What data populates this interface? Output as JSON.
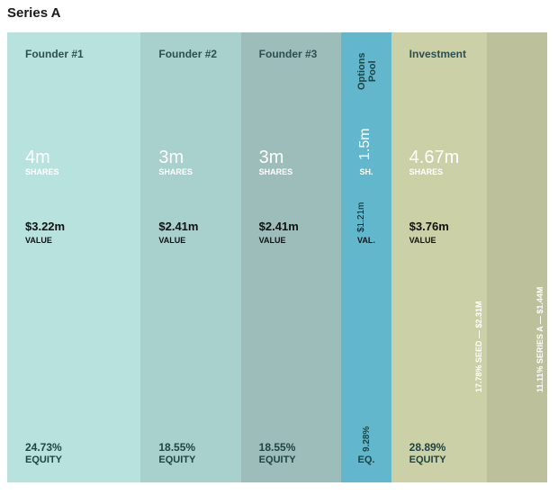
{
  "page": {
    "title": "Series A"
  },
  "chart_data": {
    "type": "marimekko",
    "title": "Series A",
    "columns": [
      {
        "name": "Founder #1",
        "shares": "4m",
        "shares_label": "SHARES",
        "value": "$3.22m",
        "value_label": "VALUE",
        "equity": "24.73%",
        "equity_label": "EQUITY",
        "equity_pct": 24.73,
        "color": "#b8e2de"
      },
      {
        "name": "Founder #2",
        "shares": "3m",
        "shares_label": "SHARES",
        "value": "$2.41m",
        "value_label": "VALUE",
        "equity": "18.55%",
        "equity_label": "EQUITY",
        "equity_pct": 18.55,
        "color": "#a8d0cd"
      },
      {
        "name": "Founder #3",
        "shares": "3m",
        "shares_label": "SHARES",
        "value": "$2.41m",
        "value_label": "VALUE",
        "equity": "18.55%",
        "equity_label": "EQUITY",
        "equity_pct": 18.55,
        "color": "#9cbdba"
      },
      {
        "name": "Options Pool",
        "shares": "1.5m",
        "shares_label": "SH.",
        "value": "$1.21m",
        "value_label": "VAL.",
        "equity": "9.28%",
        "equity_label": "EQ.",
        "equity_pct": 9.28,
        "color": "#62b7cc"
      },
      {
        "name": "Investment",
        "shares": "4.67m",
        "shares_label": "SHARES",
        "value": "$3.76m",
        "value_label": "VALUE",
        "equity": "28.89%",
        "equity_label": "EQUITY",
        "equity_pct": 28.89,
        "color": "#cbd0a6",
        "rounds": [
          {
            "label": "17.78% SEED — $2.31M",
            "equity_pct": 17.78,
            "color": "#cbd0a6"
          },
          {
            "label": "11.11% SERIES A — $1.44M",
            "equity_pct": 11.11,
            "color": "#bcc19b"
          }
        ]
      }
    ]
  }
}
